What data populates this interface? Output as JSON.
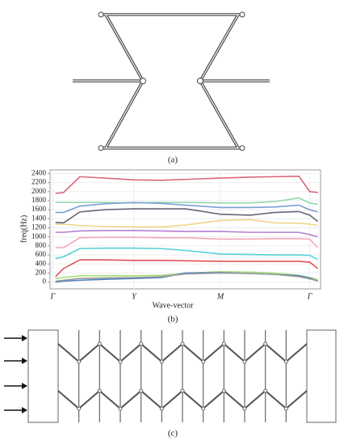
{
  "labels": {
    "a": "(a)",
    "b": "(b)",
    "c": "(c)"
  },
  "chart_data": {
    "type": "line",
    "x_label": "Wave-vector",
    "y_label": "freq(Hz)",
    "x": [
      0.02,
      0.05,
      0.11,
      0.2,
      0.31,
      0.41,
      0.5,
      0.63,
      0.74,
      0.83,
      0.92,
      0.96,
      0.99
    ],
    "xlim": [
      0,
      1
    ],
    "xticks": [
      {
        "value": 0.01,
        "label": "Γ"
      },
      {
        "value": 0.31,
        "label": "Y"
      },
      {
        "value": 0.63,
        "label": "M"
      },
      {
        "value": 0.96,
        "label": "Γ"
      }
    ],
    "ylim": [
      -150,
      2480
    ],
    "yticks": [
      0,
      200,
      400,
      600,
      800,
      1000,
      1200,
      1400,
      1600,
      1800,
      2000,
      2200,
      2400
    ],
    "grid": true,
    "series": [
      {
        "color": "#d9667a",
        "values": [
          1960,
          1980,
          2330,
          2300,
          2260,
          2250,
          2270,
          2300,
          2320,
          2330,
          2340,
          2000,
          1980
        ]
      },
      {
        "color": "#8fd9a8",
        "values": [
          1760,
          1760,
          1760,
          1760,
          1750,
          1760,
          1760,
          1750,
          1750,
          1780,
          1860,
          1750,
          1720
        ]
      },
      {
        "color": "#7a9fd6",
        "values": [
          1540,
          1540,
          1680,
          1730,
          1760,
          1740,
          1700,
          1650,
          1650,
          1660,
          1700,
          1600,
          1550
        ]
      },
      {
        "color": "#666677",
        "values": [
          1320,
          1310,
          1550,
          1600,
          1620,
          1620,
          1620,
          1500,
          1480,
          1540,
          1560,
          1480,
          1340
        ]
      },
      {
        "color": "#f0d68a",
        "values": [
          1280,
          1280,
          1250,
          1230,
          1220,
          1220,
          1260,
          1360,
          1380,
          1310,
          1300,
          1280,
          1250
        ]
      },
      {
        "color": "#b57fd1",
        "values": [
          1100,
          1100,
          1130,
          1140,
          1140,
          1130,
          1120,
          1120,
          1100,
          1100,
          1100,
          1050,
          1000
        ]
      },
      {
        "color": "#f2a6b8",
        "values": [
          760,
          760,
          980,
          990,
          990,
          980,
          980,
          950,
          950,
          960,
          960,
          950,
          760
        ]
      },
      {
        "color": "#56d0d8",
        "values": [
          520,
          560,
          740,
          750,
          750,
          740,
          700,
          620,
          610,
          600,
          600,
          590,
          500
        ]
      },
      {
        "color": "#e0505a",
        "values": [
          120,
          300,
          490,
          490,
          480,
          480,
          470,
          460,
          460,
          460,
          460,
          440,
          300
        ]
      },
      {
        "color": "#a8e07a",
        "values": [
          80,
          100,
          140,
          140,
          140,
          150,
          190,
          230,
          220,
          200,
          150,
          100,
          60
        ]
      },
      {
        "color": "#4a7fc0",
        "values": [
          0,
          20,
          40,
          60,
          80,
          100,
          200,
          210,
          190,
          170,
          140,
          90,
          20
        ]
      },
      {
        "color": "#999999",
        "values": [
          20,
          40,
          80,
          90,
          100,
          120,
          180,
          200,
          190,
          170,
          120,
          70,
          30
        ]
      }
    ]
  }
}
